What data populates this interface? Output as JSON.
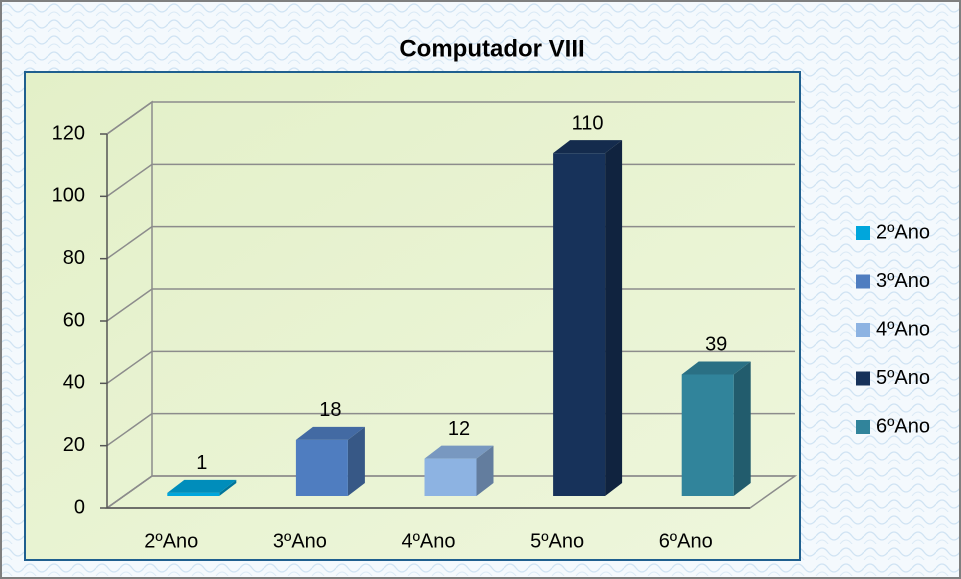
{
  "chart_data": {
    "type": "bar3d",
    "title": "Computador VIII",
    "categories": [
      "2ºAno",
      "3ºAno",
      "4ºAno",
      "5ºAno",
      "6ºAno"
    ],
    "values": [
      1,
      18,
      12,
      110,
      39
    ],
    "colors": [
      "#00a6dc",
      "#4f7dc0",
      "#8db3e2",
      "#17325a",
      "#31849b"
    ],
    "ylim": [
      0,
      120
    ],
    "yticks": [
      0,
      20,
      40,
      60,
      80,
      100,
      120
    ],
    "grid": true,
    "legend": "right"
  }
}
